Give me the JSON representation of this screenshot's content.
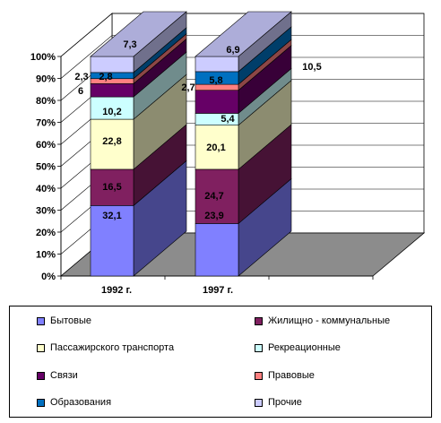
{
  "chart_data": {
    "type": "bar",
    "stacked": true,
    "percent": true,
    "three_d": true,
    "categories": [
      "1992 г.",
      "1997 г."
    ],
    "series": [
      {
        "name": "Бытовые",
        "values": [
          32.1,
          23.9
        ],
        "color": "#8080ff",
        "labels": [
          "32,1",
          "23,9"
        ]
      },
      {
        "name": "Жилищно - коммунальные",
        "values": [
          16.5,
          24.7
        ],
        "color": "#802060",
        "labels": [
          "16,5",
          "24,7"
        ]
      },
      {
        "name": "Пассажирского транспорта",
        "values": [
          22.8,
          20.1
        ],
        "color": "#ffffcc",
        "labels": [
          "22,8",
          "20,1"
        ]
      },
      {
        "name": "Рекреационные",
        "values": [
          10.2,
          5.4
        ],
        "color": "#ccffff",
        "labels": [
          "10,2",
          "5,4"
        ]
      },
      {
        "name": "Связи",
        "values": [
          6.0,
          10.5
        ],
        "color": "#660066",
        "labels": [
          "6",
          "10,5"
        ]
      },
      {
        "name": "Правовые",
        "values": [
          2.3,
          2.7
        ],
        "color": "#ff8080",
        "labels": [
          "2,3",
          "2,7"
        ]
      },
      {
        "name": "Образования",
        "values": [
          2.8,
          5.8
        ],
        "color": "#0070c0",
        "labels": [
          "2,8",
          "5,8"
        ]
      },
      {
        "name": "Прочие",
        "values": [
          7.3,
          6.9
        ],
        "color": "#ccccff",
        "labels": [
          "7,3",
          "6,9"
        ]
      }
    ],
    "y_ticks": [
      "0%",
      "10%",
      "20%",
      "30%",
      "40%",
      "50%",
      "60%",
      "70%",
      "80%",
      "90%",
      "100%"
    ],
    "ylim": [
      0,
      100
    ],
    "grid": true,
    "legend": "bottom"
  }
}
